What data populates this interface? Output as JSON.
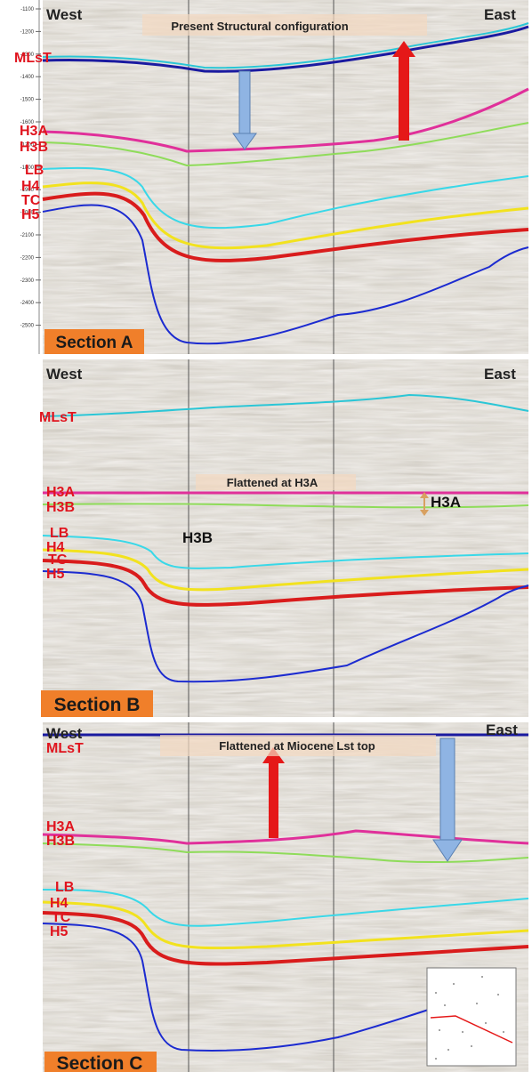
{
  "panels": [
    {
      "section_label": "Section A",
      "west": "West",
      "east": "East",
      "title": "Present Structural configuration",
      "depth_ticks": [
        "-1100",
        "-1200",
        "-1300",
        "-1400",
        "-1500",
        "-1600",
        "-1700",
        "-1800",
        "-1900",
        "-2000",
        "-2100",
        "-2200",
        "-2300",
        "-2400",
        "-2500"
      ],
      "horizon_labels": [
        "MLsT",
        "H3A",
        "H3B",
        "LB",
        "H4",
        "TC",
        "H5"
      ],
      "annotations": []
    },
    {
      "section_label": "Section B",
      "west": "West",
      "east": "East",
      "title": "Flattened at H3A",
      "depth_ticks": [],
      "horizon_labels": [
        "MLsT",
        "H3A",
        "H3B",
        "LB",
        "H4",
        "TC",
        "H5"
      ],
      "annotations": [
        "H3A",
        "H3B"
      ]
    },
    {
      "section_label": "Section C",
      "west": "West",
      "east": "East",
      "title": "Flattened at Miocene Lst top",
      "depth_ticks": [],
      "horizon_labels": [
        "MLsT",
        "H3A",
        "H3B",
        "LB",
        "H4",
        "TC",
        "H5"
      ],
      "annotations": []
    }
  ],
  "colors": {
    "MLsT": "#2bc6d6",
    "H3A": "#e0309a",
    "H3B": "#8fdc5a",
    "LB": "#39d8e8",
    "H4": "#f2e21e",
    "TC": "#d91c1c",
    "H5": "#1c2bd0",
    "label_red": "#e0141e",
    "section_badge": "#f07f2a",
    "arrow_blue": "#8fb4e3",
    "arrow_red": "#e51818"
  }
}
